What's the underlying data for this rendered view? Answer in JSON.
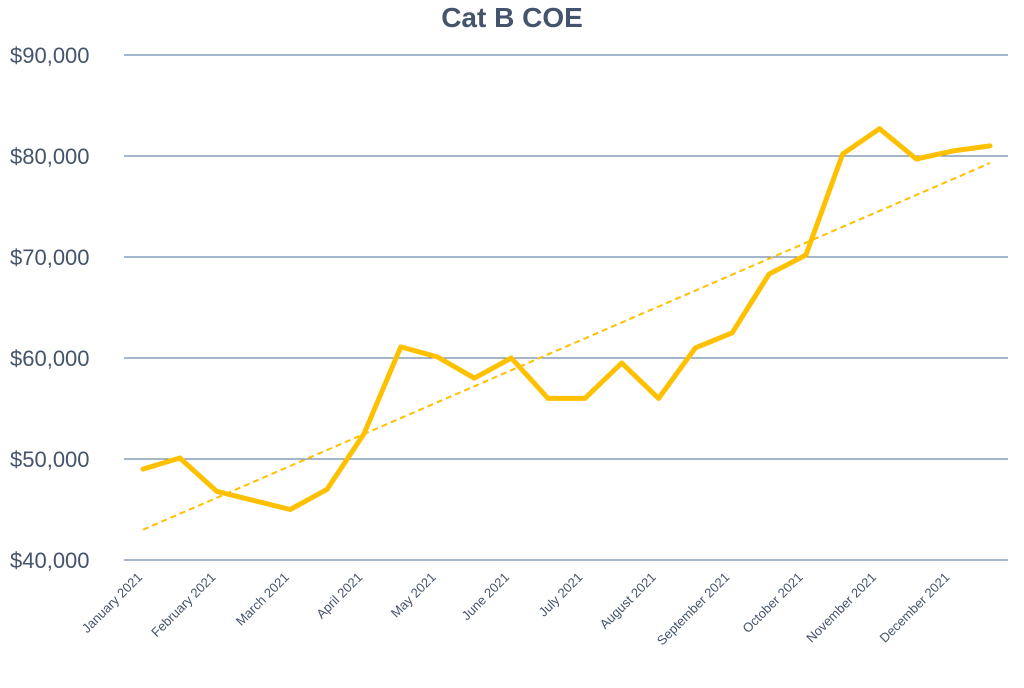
{
  "chart_data": {
    "type": "line",
    "title": "Cat B COE",
    "xlabel": "",
    "ylabel": "",
    "ylim": [
      40000,
      90000
    ],
    "yticks": [
      40000,
      50000,
      60000,
      70000,
      80000,
      90000
    ],
    "ytick_labels": [
      "$40,000",
      "$50,000",
      "$60,000",
      "$70,000",
      "$80,000",
      "$90,000"
    ],
    "x_tick_labels": [
      "January 2021",
      "February 2021",
      "March 2021",
      "April 2021",
      "May 2021",
      "June 2021",
      "July 2021",
      "August 2021",
      "September 2021",
      "October 2021",
      "November 2021",
      "December 2021"
    ],
    "grid": true,
    "legend": "none",
    "series": [
      {
        "color": "#ffc000",
        "values": [
          49000,
          50100,
          46800,
          45900,
          45000,
          47000,
          52500,
          61100,
          60100,
          58000,
          60000,
          56000,
          56000,
          59500,
          56000,
          61000,
          62500,
          68300,
          70200,
          80200,
          82700,
          79700,
          80500,
          81000
        ]
      }
    ],
    "trendline": {
      "type": "linear",
      "color": "#ffc000",
      "style": "dashed",
      "start": 43000,
      "end": 79300
    }
  }
}
